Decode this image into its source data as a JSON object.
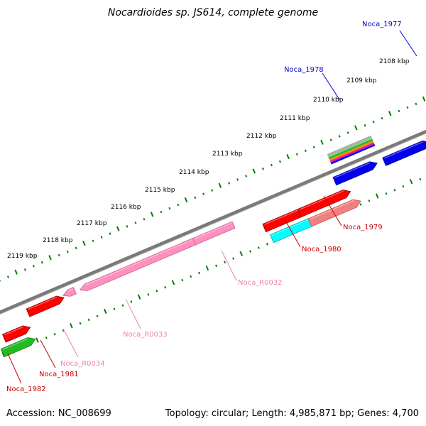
{
  "title": "Nocardioides sp. JS614, complete genome",
  "footer": {
    "accession": "Accession: NC_008699",
    "summary": "Topology: circular; Length: 4,985,871 bp; Genes: 4,700"
  },
  "colors": {
    "backbone": "#7a7a7a",
    "ticks": "#008000",
    "red": "#ff0000",
    "pink": "#ff8fbf",
    "blue": "#0000ee",
    "cyan": "#00ffff",
    "green": "#22bb22",
    "label_blue": "#0000cc",
    "label_red": "#cc0000",
    "label_pink": "#ee82b4"
  },
  "scale": {
    "ticks": [
      "2108 kbp",
      "2109 kbp",
      "2110 kbp",
      "2111 kbp",
      "2112 kbp",
      "2113 kbp",
      "2114 kbp",
      "2115 kbp",
      "2116 kbp",
      "2117 kbp",
      "2118 kbp",
      "2119 kbp"
    ]
  },
  "features": [
    {
      "name": "Noca_1977",
      "strand": "+",
      "color": "blue"
    },
    {
      "name": "Noca_1978",
      "strand": "+",
      "color": "multi"
    },
    {
      "name": "Noca_1979",
      "strand": "+",
      "color": "red"
    },
    {
      "name": "Noca_1980",
      "strand": "+",
      "color": "red"
    },
    {
      "name": "Noca_R0032",
      "strand": "-",
      "color": "pink"
    },
    {
      "name": "Noca_R0033",
      "strand": "-",
      "color": "pink"
    },
    {
      "name": "Noca_R0034",
      "strand": "-",
      "color": "pink"
    },
    {
      "name": "Noca_1981",
      "strand": "+",
      "color": "red"
    },
    {
      "name": "Noca_1982",
      "strand": "+",
      "color": "red"
    }
  ]
}
